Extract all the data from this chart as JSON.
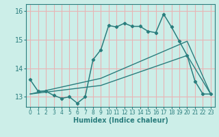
{
  "xlabel": "Humidex (Indice chaleur)",
  "bg_color": "#cceee8",
  "grid_color": "#e8b4b4",
  "line_color": "#2a7d7d",
  "xlim": [
    -0.5,
    23.5
  ],
  "ylim": [
    12.65,
    16.25
  ],
  "yticks": [
    13,
    14,
    15,
    16
  ],
  "xticks": [
    0,
    1,
    2,
    3,
    4,
    5,
    6,
    7,
    8,
    9,
    10,
    11,
    12,
    13,
    14,
    15,
    16,
    17,
    18,
    19,
    20,
    21,
    22,
    23
  ],
  "line1_x": [
    0,
    1,
    2,
    3,
    4,
    5,
    6,
    7,
    8,
    9,
    10,
    11,
    12,
    13,
    14,
    15,
    16,
    17,
    18,
    19,
    20,
    21,
    22,
    23
  ],
  "line1_y": [
    13.6,
    13.2,
    13.2,
    13.05,
    12.95,
    13.0,
    12.78,
    13.0,
    14.3,
    14.65,
    15.5,
    15.45,
    15.58,
    15.47,
    15.47,
    15.3,
    15.25,
    15.9,
    15.45,
    14.95,
    14.45,
    13.55,
    13.1,
    13.1
  ],
  "line2_x": [
    0,
    9,
    20,
    23
  ],
  "line2_y": [
    13.1,
    13.65,
    14.95,
    13.1
  ],
  "line3_x": [
    0,
    9,
    20,
    23
  ],
  "line3_y": [
    13.1,
    13.4,
    14.45,
    13.1
  ],
  "xlabel_fontsize": 7,
  "ytick_fontsize": 7,
  "xtick_fontsize": 5.5
}
